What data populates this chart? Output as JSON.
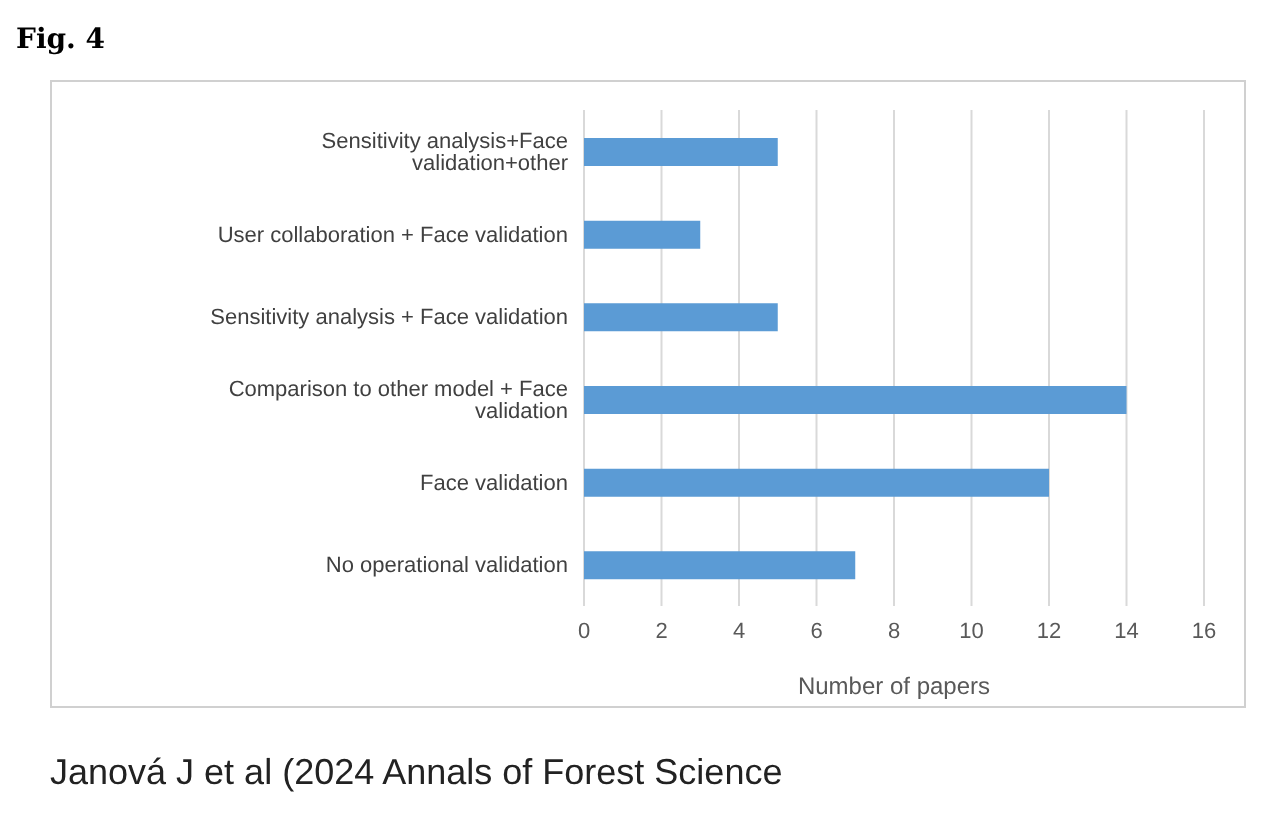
{
  "chart_data": {
    "type": "bar",
    "orientation": "horizontal",
    "title": "Fig. 4",
    "xlabel": "Number of papers",
    "categories": [
      "Sensitivity analysis+Face validation+other",
      "User collaboration  + Face validation",
      "Sensitivity analysis + Face validation",
      "Comparison to other model  + Face validation",
      "Face validation",
      "No operational validation"
    ],
    "values": [
      5,
      3,
      5,
      14,
      12,
      7
    ],
    "color": "#5b9bd5",
    "xlim": [
      0,
      16
    ],
    "xticks": [
      0,
      2,
      4,
      6,
      8,
      10,
      12,
      14,
      16
    ],
    "grid": "x",
    "annotations": [
      "Janová J et al (2024 Annals of Forest Science"
    ]
  }
}
